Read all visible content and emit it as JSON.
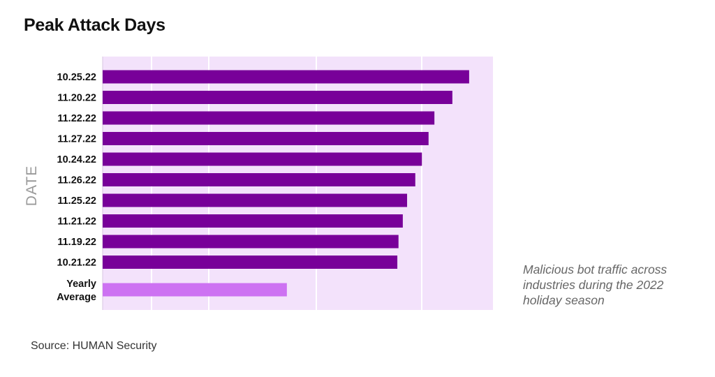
{
  "chart_data": {
    "type": "bar",
    "orientation": "horizontal",
    "title": "Peak Attack Days",
    "ylabel": "DATE",
    "xlabel": "",
    "xlim": [
      0,
      100
    ],
    "grid": true,
    "categories": [
      "10.25.22",
      "11.20.22",
      "11.22.22",
      "11.27.22",
      "10.24.22",
      "11.26.22",
      "11.25.22",
      "11.21.22",
      "11.19.22",
      "10.21.22",
      "Yearly Average"
    ],
    "values": [
      93.9,
      89.6,
      85.0,
      83.5,
      81.8,
      80.1,
      78.0,
      76.9,
      75.8,
      75.5,
      47.2
    ],
    "value_note": "relative bar lengths (no scale shown)",
    "colors": {
      "bar": "#780099",
      "average": "#cd72f2",
      "plot_bg": "#f3e2fb",
      "grid": "#ffffff"
    }
  },
  "annotation": "Malicious bot traffic across industries during the 2022 holiday season",
  "source": "Source: HUMAN Security"
}
